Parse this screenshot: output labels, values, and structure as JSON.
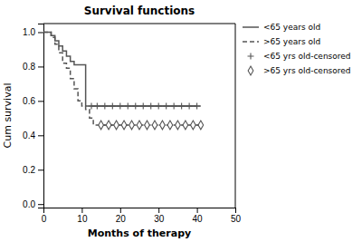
{
  "chart_data": {
    "type": "line",
    "title": "Survival functions",
    "x_label": "Months of therapy",
    "y_label": "Cum survival",
    "xlim": [
      0,
      50
    ],
    "ylim": [
      -0.02,
      1.05
    ],
    "xticks": [
      0,
      10,
      20,
      30,
      40,
      50
    ],
    "yticks": [
      {
        "value": 0.0,
        "label": "0.0"
      },
      0.2,
      0.4,
      0.6,
      0.8,
      {
        "value": 1.0,
        "label": "1.0"
      }
    ],
    "grid": false,
    "legend": "right",
    "series": [
      {
        "name": "<65 years old",
        "type": "step",
        "color": "#555555",
        "line_style": "solid",
        "x": [
          0,
          1,
          2,
          3,
          4,
          5,
          6,
          7,
          8,
          9,
          10,
          11,
          12,
          41
        ],
        "values": [
          1.0,
          1.0,
          0.98,
          0.95,
          0.92,
          0.89,
          0.86,
          0.83,
          0.81,
          0.81,
          0.81,
          0.57,
          0.57,
          0.57
        ]
      },
      {
        "name": ">65 years old",
        "type": "step",
        "color": "#555555",
        "line_style": "dashed",
        "x": [
          0,
          1,
          2,
          3,
          4,
          5,
          6,
          7,
          8,
          9,
          10,
          11,
          12,
          13,
          14,
          41
        ],
        "values": [
          1.0,
          1.0,
          0.97,
          0.93,
          0.88,
          0.82,
          0.79,
          0.73,
          0.67,
          0.6,
          0.57,
          0.55,
          0.5,
          0.46,
          0.46,
          0.46
        ]
      },
      {
        "name": "<65 yrs old-censored",
        "type": "line",
        "color": "#555555",
        "line_style": "solid",
        "marker": "plus",
        "x": [
          12.5,
          14,
          16,
          18,
          20,
          22,
          24,
          26,
          28,
          30,
          32,
          34,
          36,
          38,
          40
        ],
        "values": [
          0.57,
          0.57,
          0.57,
          0.57,
          0.57,
          0.57,
          0.57,
          0.57,
          0.57,
          0.57,
          0.57,
          0.57,
          0.57,
          0.57,
          0.57
        ]
      },
      {
        "name": ">65 yrs old-censored",
        "type": "line",
        "color": "#555555",
        "line_style": "dashed",
        "marker": "diamond",
        "x": [
          15,
          17,
          19,
          21,
          23,
          25,
          27,
          29,
          31,
          33,
          35,
          37,
          39,
          41
        ],
        "values": [
          0.46,
          0.46,
          0.46,
          0.46,
          0.46,
          0.46,
          0.46,
          0.46,
          0.46,
          0.46,
          0.46,
          0.46,
          0.46,
          0.46
        ]
      }
    ]
  }
}
